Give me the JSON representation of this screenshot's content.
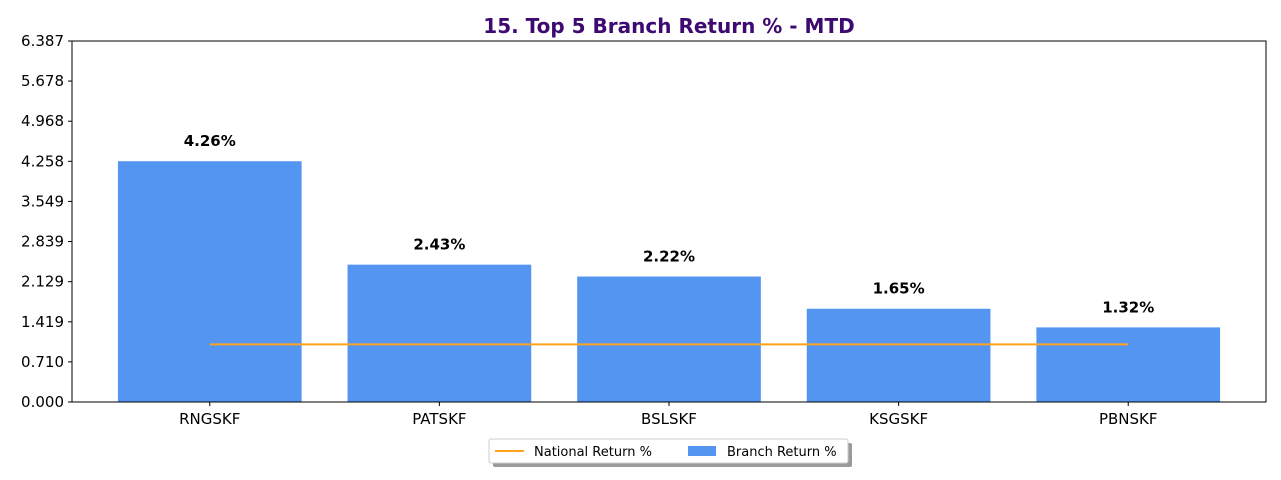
{
  "chart_data": {
    "type": "bar",
    "title": "15. Top 5 Branch Return % - MTD",
    "xlabel": "",
    "ylabel": "",
    "categories": [
      "RNGSKF",
      "PATSKF",
      "BSLSKF",
      "KSGSKF",
      "PBNSKF"
    ],
    "series": [
      {
        "name": "Branch Return %",
        "type": "bar",
        "values": [
          4.26,
          2.43,
          2.22,
          1.65,
          1.32
        ],
        "data_labels": [
          "4.26%",
          "2.43%",
          "2.22%",
          "1.65%",
          "1.32%"
        ]
      },
      {
        "name": "National Return %",
        "type": "line",
        "values": [
          1.02,
          1.02,
          1.02,
          1.02,
          1.02
        ]
      }
    ],
    "ylim": [
      0,
      6.387
    ],
    "yticks": [
      "0.000",
      "0.710",
      "1.419",
      "2.129",
      "2.839",
      "3.549",
      "4.258",
      "4.968",
      "5.678",
      "6.387"
    ],
    "grid": false,
    "legend_position": "bottom-center"
  },
  "colors": {
    "bar": "#5595f2",
    "line": "#ffa31a",
    "title": "#3d0a72"
  }
}
